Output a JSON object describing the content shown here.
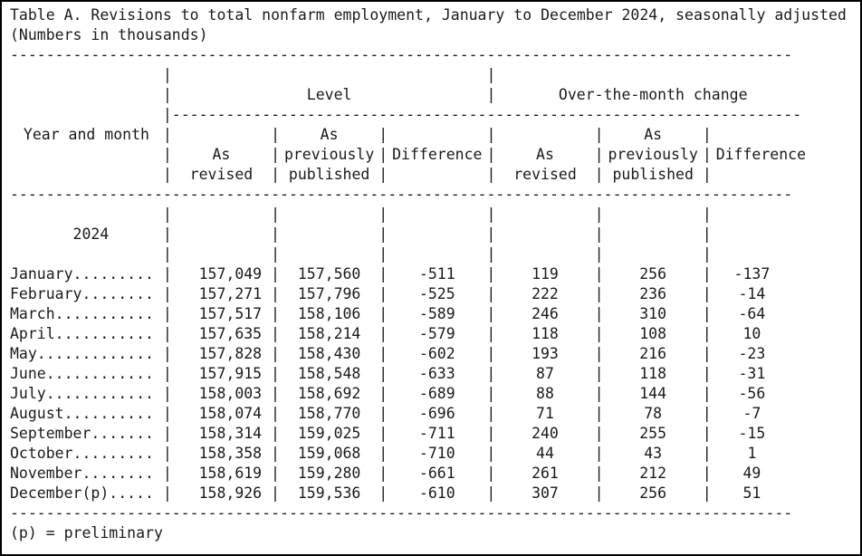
{
  "title": {
    "line1": "Table A. Revisions to total nonfarm employment, January to December 2024, seasonally adjusted",
    "line2": "(Numbers in thousands)"
  },
  "separators": {
    "pipe": "|",
    "full_rule": "---------------------------------------------------------------------------------------",
    "header_rule": "----------------------------------------------------------------------"
  },
  "table": {
    "stub_header": "Year and month",
    "group_headers": {
      "level": "Level",
      "change": "Over-the-month change"
    },
    "column_headers": {
      "as": "As",
      "revised": "revised",
      "previously": "previously",
      "published": "published",
      "difference": "Difference"
    },
    "year_label": "2024",
    "rows": [
      {
        "month": "January.........",
        "level_revised": "157,049",
        "level_published": "157,560",
        "level_difference": "-511",
        "change_revised": "119",
        "change_published": "256",
        "change_difference": "-137"
      },
      {
        "month": "February........",
        "level_revised": "157,271",
        "level_published": "157,796",
        "level_difference": "-525",
        "change_revised": "222",
        "change_published": "236",
        "change_difference": "-14"
      },
      {
        "month": "March...........",
        "level_revised": "157,517",
        "level_published": "158,106",
        "level_difference": "-589",
        "change_revised": "246",
        "change_published": "310",
        "change_difference": "-64"
      },
      {
        "month": "April...........",
        "level_revised": "157,635",
        "level_published": "158,214",
        "level_difference": "-579",
        "change_revised": "118",
        "change_published": "108",
        "change_difference": "10"
      },
      {
        "month": "May.............",
        "level_revised": "157,828",
        "level_published": "158,430",
        "level_difference": "-602",
        "change_revised": "193",
        "change_published": "216",
        "change_difference": "-23"
      },
      {
        "month": "June............",
        "level_revised": "157,915",
        "level_published": "158,548",
        "level_difference": "-633",
        "change_revised": "87",
        "change_published": "118",
        "change_difference": "-31"
      },
      {
        "month": "July............",
        "level_revised": "158,003",
        "level_published": "158,692",
        "level_difference": "-689",
        "change_revised": "88",
        "change_published": "144",
        "change_difference": "-56"
      },
      {
        "month": "August..........",
        "level_revised": "158,074",
        "level_published": "158,770",
        "level_difference": "-696",
        "change_revised": "71",
        "change_published": "78",
        "change_difference": "-7"
      },
      {
        "month": "September.......",
        "level_revised": "158,314",
        "level_published": "159,025",
        "level_difference": "-711",
        "change_revised": "240",
        "change_published": "255",
        "change_difference": "-15"
      },
      {
        "month": "October.........",
        "level_revised": "158,358",
        "level_published": "159,068",
        "level_difference": "-710",
        "change_revised": "44",
        "change_published": "43",
        "change_difference": "1"
      },
      {
        "month": "November........",
        "level_revised": "158,619",
        "level_published": "159,280",
        "level_difference": "-661",
        "change_revised": "261",
        "change_published": "212",
        "change_difference": "49"
      },
      {
        "month": "December(p).....",
        "level_revised": "158,926",
        "level_published": "159,536",
        "level_difference": "-610",
        "change_revised": "307",
        "change_published": "256",
        "change_difference": "51"
      }
    ]
  },
  "footnote": "(p) = preliminary",
  "colors": {
    "text": "#1a1a1a",
    "background": "#ffffff",
    "border": "#000000"
  }
}
